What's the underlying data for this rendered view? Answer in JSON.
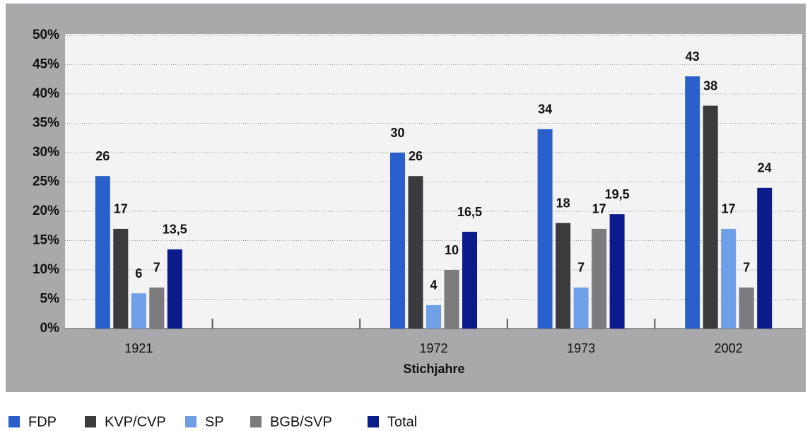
{
  "chart_data": {
    "type": "bar",
    "x_label": "Stichjahre",
    "categories": [
      "1921",
      null,
      "1972",
      "1973",
      "2002"
    ],
    "series": [
      {
        "name": "FDP",
        "color": "#2a5fcb",
        "values": [
          26,
          null,
          30,
          34,
          43
        ]
      },
      {
        "name": "KVP/CVP",
        "color": "#3b3b3d",
        "values": [
          17,
          null,
          26,
          18,
          38
        ]
      },
      {
        "name": "SP",
        "color": "#6f9fe6",
        "values": [
          6,
          null,
          4,
          7,
          17
        ]
      },
      {
        "name": "BGB/SVP",
        "color": "#7b7b7d",
        "values": [
          7,
          null,
          10,
          17,
          7
        ]
      },
      {
        "name": "Total",
        "color": "#0b1b8c",
        "values": [
          13.5,
          null,
          16.5,
          19.5,
          24
        ],
        "value_labels": [
          "13,5",
          null,
          "16,5",
          "19,5",
          "24"
        ]
      }
    ],
    "ylim": [
      0,
      50
    ],
    "yticks": [
      {
        "value": 0,
        "label": "0%"
      },
      {
        "value": 5,
        "label": "5%"
      },
      {
        "value": 10,
        "label": "10%"
      },
      {
        "value": 15,
        "label": "15%"
      },
      {
        "value": 20,
        "label": "20%"
      },
      {
        "value": 25,
        "label": "25%"
      },
      {
        "value": 30,
        "label": "30%"
      },
      {
        "value": 35,
        "label": "35%"
      },
      {
        "value": 40,
        "label": "40%"
      },
      {
        "value": 45,
        "label": "45%"
      },
      {
        "value": 50,
        "label": "50%"
      }
    ],
    "grid": true
  }
}
